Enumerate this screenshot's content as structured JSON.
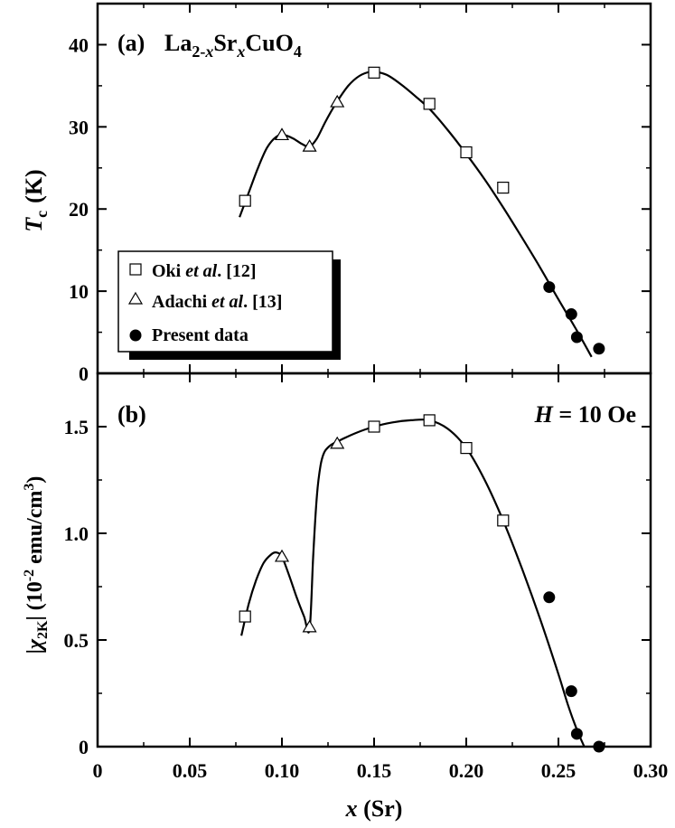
{
  "chart_data": [
    {
      "type": "scatter",
      "panel": "a",
      "panel_label": "(a)",
      "title_parts": {
        "base": "La",
        "sub1": "2-",
        "sub1_italic": "x",
        "mid": "Sr",
        "sub2_italic": "x",
        "tail": "CuO",
        "sub3": "4"
      },
      "ylabel_main": "T",
      "ylabel_sub": "c",
      "ylabel_unit": "(K)",
      "ylim": [
        0,
        45
      ],
      "yticks": [
        0,
        10,
        20,
        30,
        40
      ],
      "ytick_labels": [
        "0",
        "10",
        "20",
        "30",
        "40"
      ],
      "xlim": [
        0,
        0.3
      ],
      "legend": {
        "placement": "lower-left",
        "entries": [
          {
            "marker": "open-square",
            "prefix": "Oki ",
            "italic": "et al",
            "suffix": ". [12]"
          },
          {
            "marker": "open-triangle",
            "prefix": "Adachi ",
            "italic": "et al",
            "suffix": ". [13]"
          },
          {
            "marker": "filled-circle",
            "prefix": "Present data",
            "italic": "",
            "suffix": ""
          }
        ]
      },
      "series": [
        {
          "name": "Oki et al. [12]",
          "marker": "open-square",
          "x": [
            0.08,
            0.15,
            0.18,
            0.2,
            0.22
          ],
          "y": [
            21.0,
            36.6,
            32.8,
            26.9,
            22.6
          ]
        },
        {
          "name": "Adachi et al. [13]",
          "marker": "open-triangle",
          "x": [
            0.1,
            0.115,
            0.13
          ],
          "y": [
            29.0,
            27.6,
            33.0
          ]
        },
        {
          "name": "Present data",
          "marker": "filled-circle",
          "x": [
            0.245,
            0.257,
            0.26,
            0.272
          ],
          "y": [
            10.5,
            7.2,
            4.4,
            3.0
          ]
        }
      ],
      "curve": {
        "x": [
          0.077,
          0.082,
          0.087,
          0.092,
          0.097,
          0.101,
          0.106,
          0.111,
          0.115,
          0.119,
          0.124,
          0.13,
          0.136,
          0.142,
          0.148,
          0.153,
          0.158,
          0.165,
          0.172,
          0.18,
          0.19,
          0.2,
          0.21,
          0.22,
          0.23,
          0.24,
          0.25,
          0.26,
          0.268
        ],
        "y": [
          19.0,
          22.0,
          25.0,
          27.5,
          28.8,
          29.0,
          28.6,
          27.9,
          27.6,
          28.6,
          30.8,
          33.1,
          35.0,
          36.2,
          36.7,
          36.6,
          36.2,
          35.1,
          33.8,
          32.2,
          29.6,
          26.7,
          23.6,
          20.2,
          16.6,
          12.9,
          9.0,
          5.2,
          2.0
        ]
      }
    },
    {
      "type": "scatter",
      "panel": "b",
      "panel_label": "(b)",
      "annotation": {
        "italic": "H",
        "rest": " = 10 Oe"
      },
      "ylabel_parts": {
        "open": "|",
        "chi": "χ",
        "sub": "2K",
        "close": "| (10",
        "exp": "-2",
        "unit": " emu/cm",
        "exp2": "3",
        "end": ")"
      },
      "ylim": [
        0,
        1.75
      ],
      "yticks": [
        0,
        0.5,
        1.0,
        1.5
      ],
      "ytick_labels": [
        "0",
        "0.5",
        "1.0",
        "1.5"
      ],
      "xlim": [
        0,
        0.3
      ],
      "xticks": [
        0,
        0.05,
        0.1,
        0.15,
        0.2,
        0.25,
        0.3
      ],
      "xtick_labels": [
        "0",
        "0.05",
        "0.10",
        "0.15",
        "0.20",
        "0.25",
        "0.30"
      ],
      "xlabel_italic": "x",
      "xlabel_rest": " (Sr)",
      "series": [
        {
          "name": "Oki et al. [12]",
          "marker": "open-square",
          "x": [
            0.08,
            0.15,
            0.18,
            0.2,
            0.22
          ],
          "y": [
            0.61,
            1.5,
            1.53,
            1.4,
            1.06
          ]
        },
        {
          "name": "Adachi et al. [13]",
          "marker": "open-triangle",
          "x": [
            0.1,
            0.115,
            0.13
          ],
          "y": [
            0.89,
            0.56,
            1.42
          ]
        },
        {
          "name": "Present data",
          "marker": "filled-circle",
          "x": [
            0.245,
            0.257,
            0.26,
            0.272
          ],
          "y": [
            0.7,
            0.26,
            0.06,
            0.0
          ]
        }
      ],
      "curve": {
        "x": [
          0.078,
          0.082,
          0.086,
          0.09,
          0.094,
          0.097,
          0.1,
          0.104,
          0.108,
          0.112,
          0.115,
          0.117,
          0.119,
          0.121,
          0.123,
          0.126,
          0.13,
          0.14,
          0.15,
          0.16,
          0.17,
          0.18,
          0.19,
          0.2,
          0.21,
          0.22,
          0.23,
          0.24,
          0.25,
          0.255,
          0.26,
          0.264
        ],
        "y": [
          0.52,
          0.67,
          0.78,
          0.86,
          0.9,
          0.91,
          0.89,
          0.8,
          0.7,
          0.61,
          0.55,
          0.9,
          1.18,
          1.32,
          1.38,
          1.41,
          1.43,
          1.47,
          1.5,
          1.52,
          1.53,
          1.53,
          1.49,
          1.4,
          1.25,
          1.06,
          0.84,
          0.6,
          0.34,
          0.2,
          0.08,
          0.0
        ]
      }
    }
  ]
}
